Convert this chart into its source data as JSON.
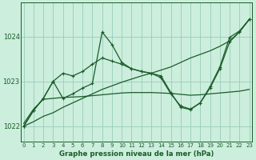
{
  "title": "Graphe pression niveau de la mer (hPa)",
  "background_color": "#cceedd",
  "plot_bg_color": "#cceedd",
  "grid_color": "#99ccbb",
  "line_color": "#1a5c28",
  "ylim": [
    1021.65,
    1024.75
  ],
  "yticks": [
    1022,
    1023,
    1024
  ],
  "xlim": [
    -0.3,
    23.3
  ],
  "xticks": [
    0,
    1,
    2,
    3,
    4,
    5,
    6,
    7,
    8,
    9,
    10,
    11,
    12,
    13,
    14,
    15,
    16,
    17,
    18,
    19,
    20,
    21,
    22,
    23
  ],
  "s1": [
    1022.0,
    1022.35,
    1022.62,
    1023.0,
    1022.62,
    1022.72,
    1022.85,
    1022.95,
    1024.1,
    1023.82,
    1023.42,
    1023.28,
    1023.22,
    1023.18,
    1023.12,
    1022.75,
    1022.42,
    1022.37,
    1022.52,
    1022.88,
    1023.32,
    1023.98,
    1024.12,
    1024.38
  ],
  "s2": [
    1022.0,
    1022.1,
    1022.22,
    1022.3,
    1022.42,
    1022.52,
    1022.62,
    1022.72,
    1022.82,
    1022.9,
    1022.98,
    1023.05,
    1023.12,
    1023.18,
    1023.25,
    1023.32,
    1023.42,
    1023.52,
    1023.6,
    1023.68,
    1023.78,
    1023.9,
    1024.1,
    1024.38
  ],
  "s3": [
    1022.0,
    1022.35,
    1022.62,
    1023.0,
    1023.18,
    1023.12,
    1023.22,
    1023.38,
    1023.52,
    1023.45,
    1023.38,
    1023.28,
    1023.22,
    1023.18,
    1023.08,
    1022.72,
    1022.45,
    1022.38,
    1022.52,
    1022.85,
    1023.28,
    1023.88,
    1024.1,
    1024.38
  ],
  "s4": [
    1022.06,
    1022.38,
    1022.6,
    1022.62,
    1022.64,
    1022.65,
    1022.66,
    1022.68,
    1022.7,
    1022.72,
    1022.74,
    1022.75,
    1022.75,
    1022.75,
    1022.74,
    1022.73,
    1022.71,
    1022.69,
    1022.7,
    1022.72,
    1022.74,
    1022.76,
    1022.78,
    1022.82
  ]
}
